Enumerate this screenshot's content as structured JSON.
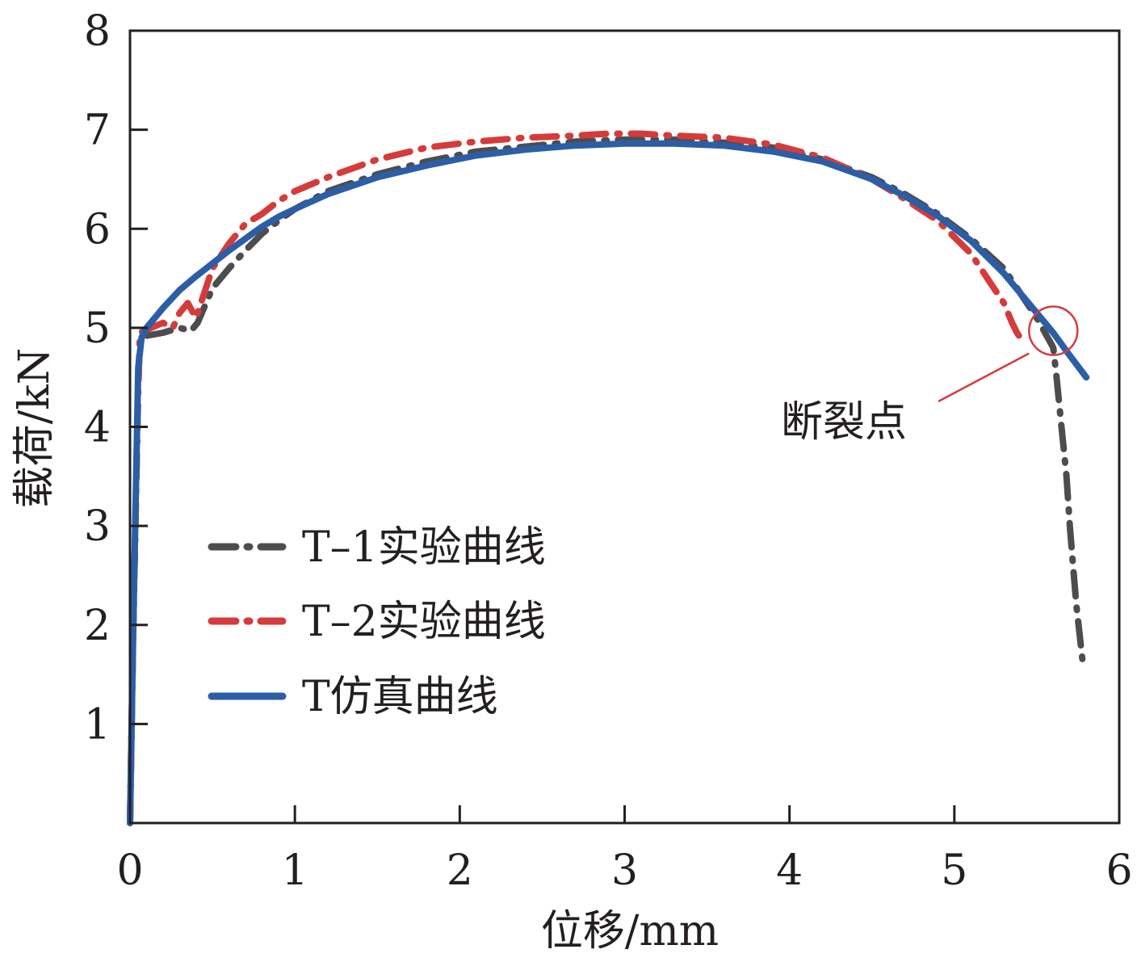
{
  "chart_data": {
    "type": "line",
    "title": "",
    "xlabel": "位移/mm",
    "ylabel": "载荷/kN",
    "xlim": [
      0,
      6
    ],
    "ylim": [
      0,
      8
    ],
    "x_ticks": [
      0,
      1,
      2,
      3,
      4,
      5,
      6
    ],
    "y_ticks": [
      1,
      2,
      3,
      4,
      5,
      6,
      7,
      8
    ],
    "x_tick_labels": [
      "0",
      "1",
      "2",
      "3",
      "4",
      "5",
      "6"
    ],
    "y_tick_labels": [
      "1",
      "2",
      "3",
      "4",
      "5",
      "6",
      "7",
      "8"
    ],
    "grid": false,
    "legend_position": "bottom-left",
    "series": [
      {
        "name": "T–1实验曲线",
        "color": "#4d4d4f",
        "style": "dashdot",
        "x": [
          0.0,
          0.02,
          0.05,
          0.06,
          0.1,
          0.2,
          0.3,
          0.37,
          0.41,
          0.5,
          0.6,
          0.7,
          0.8,
          0.9,
          1.0,
          1.2,
          1.5,
          1.8,
          2.1,
          2.4,
          2.7,
          3.0,
          3.3,
          3.6,
          3.9,
          4.2,
          4.5,
          4.7,
          4.9,
          5.1,
          5.3,
          5.4,
          5.5,
          5.55,
          5.6,
          5.62,
          5.65,
          5.68,
          5.7,
          5.72,
          5.74,
          5.76,
          5.77,
          5.78
        ],
        "y": [
          0.0,
          2.0,
          4.4,
          4.9,
          4.92,
          4.95,
          5.0,
          4.97,
          5.05,
          5.4,
          5.6,
          5.78,
          5.95,
          6.08,
          6.2,
          6.38,
          6.55,
          6.68,
          6.78,
          6.83,
          6.88,
          6.9,
          6.9,
          6.87,
          6.82,
          6.7,
          6.52,
          6.35,
          6.15,
          5.9,
          5.6,
          5.35,
          5.1,
          4.95,
          4.8,
          4.5,
          4.0,
          3.5,
          3.0,
          2.6,
          2.2,
          1.9,
          1.75,
          1.6
        ]
      },
      {
        "name": "T–2实验曲线",
        "color": "#d63b3b",
        "style": "dashdot",
        "x": [
          0.0,
          0.02,
          0.05,
          0.06,
          0.1,
          0.2,
          0.26,
          0.3,
          0.35,
          0.4,
          0.5,
          0.6,
          0.7,
          0.8,
          0.9,
          1.0,
          1.2,
          1.5,
          1.8,
          2.1,
          2.4,
          2.7,
          2.9,
          3.1,
          3.3,
          3.6,
          3.9,
          4.2,
          4.5,
          4.7,
          4.9,
          5.1,
          5.2,
          5.3,
          5.35,
          5.38,
          5.4
        ],
        "y": [
          0.0,
          2.0,
          4.4,
          4.95,
          4.98,
          5.05,
          5.0,
          5.15,
          5.25,
          5.1,
          5.6,
          5.85,
          6.05,
          6.15,
          6.28,
          6.38,
          6.52,
          6.7,
          6.82,
          6.88,
          6.92,
          6.94,
          6.96,
          6.96,
          6.94,
          6.92,
          6.85,
          6.72,
          6.5,
          6.3,
          6.08,
          5.75,
          5.5,
          5.25,
          5.05,
          4.95,
          4.9
        ]
      },
      {
        "name": "T仿真曲线",
        "color": "#2b5ea7",
        "style": "solid",
        "x": [
          0.0,
          0.02,
          0.05,
          0.07,
          0.1,
          0.2,
          0.3,
          0.4,
          0.5,
          0.6,
          0.7,
          0.8,
          0.9,
          1.0,
          1.2,
          1.5,
          1.8,
          2.1,
          2.4,
          2.7,
          3.0,
          3.3,
          3.6,
          3.9,
          4.2,
          4.5,
          4.7,
          4.9,
          5.1,
          5.3,
          5.45,
          5.6,
          5.7,
          5.8
        ],
        "y": [
          0.0,
          2.0,
          4.6,
          4.9,
          5.0,
          5.2,
          5.38,
          5.52,
          5.65,
          5.78,
          5.9,
          6.02,
          6.12,
          6.2,
          6.35,
          6.52,
          6.64,
          6.74,
          6.8,
          6.84,
          6.86,
          6.86,
          6.84,
          6.78,
          6.68,
          6.5,
          6.33,
          6.13,
          5.88,
          5.55,
          5.25,
          4.95,
          4.72,
          4.5
        ]
      }
    ],
    "annotations": [
      {
        "text": "断裂点",
        "target_x": 5.6,
        "target_y": 4.97,
        "color": "#d63b3b"
      }
    ]
  }
}
